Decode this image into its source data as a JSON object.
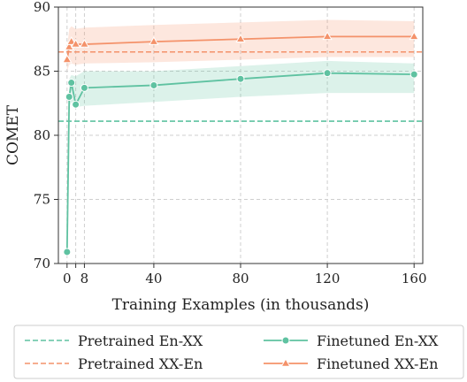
{
  "chart_data": {
    "type": "line",
    "xlabel": "Training Examples (in thousands)",
    "ylabel": "COMET",
    "xlim": [
      -4,
      164
    ],
    "ylim": [
      70,
      90
    ],
    "xticks": [
      0,
      4,
      8,
      40,
      80,
      120,
      160
    ],
    "xtick_labels": [
      "0",
      "",
      "8",
      "40",
      "80",
      "120",
      "160"
    ],
    "yticks": [
      70,
      75,
      80,
      85,
      90
    ],
    "grid": true,
    "legend_position": "bottom-outside",
    "series": [
      {
        "name": "Pretrained En-XX",
        "kind": "hline",
        "y": 81.1,
        "color": "#5fc2a1",
        "style": "dashed"
      },
      {
        "name": "Pretrained XX-En",
        "kind": "hline",
        "y": 86.5,
        "color": "#f4926a",
        "style": "dashed"
      },
      {
        "name": "Finetuned En-XX",
        "kind": "line",
        "marker": "circle",
        "color": "#5fc2a1",
        "x": [
          0,
          1,
          2,
          4,
          8,
          40,
          80,
          120,
          160
        ],
        "y": [
          70.9,
          83.0,
          84.1,
          82.4,
          83.7,
          83.9,
          84.4,
          84.85,
          84.75
        ],
        "band_lower": [
          70.9,
          82.2,
          82.6,
          82.2,
          82.3,
          82.6,
          83.0,
          83.3,
          83.3
        ],
        "band_upper": [
          70.9,
          84.4,
          84.7,
          84.6,
          85.0,
          85.0,
          85.4,
          85.8,
          85.6
        ]
      },
      {
        "name": "Finetuned XX-En",
        "kind": "line",
        "marker": "triangle",
        "color": "#f4926a",
        "x": [
          0,
          1,
          2,
          4,
          8,
          40,
          80,
          120,
          160
        ],
        "y": [
          85.9,
          86.9,
          87.3,
          87.1,
          87.1,
          87.3,
          87.5,
          87.7,
          87.7
        ],
        "band_lower": [
          85.0,
          85.5,
          85.6,
          85.5,
          85.6,
          85.7,
          85.9,
          86.1,
          86.1
        ],
        "band_upper": [
          86.8,
          88.3,
          88.5,
          88.3,
          88.4,
          88.6,
          88.8,
          89.0,
          88.9
        ]
      }
    ]
  }
}
